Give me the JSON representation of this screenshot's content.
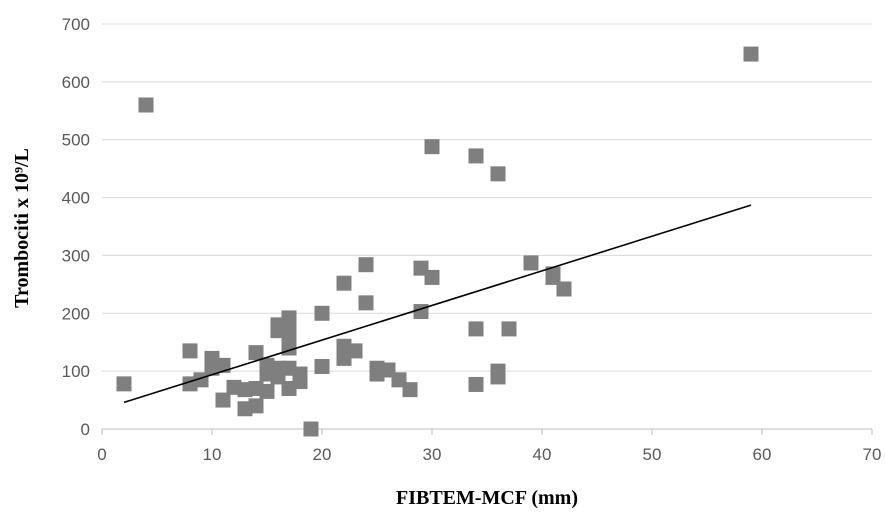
{
  "chart_data": {
    "type": "scatter",
    "title": "",
    "xlabel": "FIBTEM-MCF (mm)",
    "ylabel": "Trombociti x 10⁹/L",
    "xlim": [
      0,
      70
    ],
    "ylim": [
      0,
      700
    ],
    "x_ticks": [
      0,
      10,
      20,
      30,
      40,
      50,
      60,
      70
    ],
    "y_ticks": [
      0,
      100,
      200,
      300,
      400,
      500,
      600,
      700
    ],
    "grid": "horizontal",
    "legend": "none",
    "marker": "square",
    "colors": {
      "marker": "#7f7f7f",
      "trendline": "#000000",
      "grid": "#d9d9d9",
      "axis": "#bfbfbf"
    },
    "points": [
      {
        "x": 2,
        "y": 78
      },
      {
        "x": 4,
        "y": 560
      },
      {
        "x": 8,
        "y": 135
      },
      {
        "x": 8,
        "y": 78
      },
      {
        "x": 9,
        "y": 85
      },
      {
        "x": 10,
        "y": 122
      },
      {
        "x": 10,
        "y": 105
      },
      {
        "x": 11,
        "y": 110
      },
      {
        "x": 11,
        "y": 50
      },
      {
        "x": 12,
        "y": 72
      },
      {
        "x": 13,
        "y": 68
      },
      {
        "x": 13,
        "y": 35
      },
      {
        "x": 14,
        "y": 132
      },
      {
        "x": 14,
        "y": 70
      },
      {
        "x": 14,
        "y": 40
      },
      {
        "x": 15,
        "y": 110
      },
      {
        "x": 15,
        "y": 95
      },
      {
        "x": 15,
        "y": 65
      },
      {
        "x": 16,
        "y": 180
      },
      {
        "x": 16,
        "y": 170
      },
      {
        "x": 16,
        "y": 105
      },
      {
        "x": 16,
        "y": 90
      },
      {
        "x": 17,
        "y": 192
      },
      {
        "x": 17,
        "y": 175
      },
      {
        "x": 17,
        "y": 155
      },
      {
        "x": 17,
        "y": 140
      },
      {
        "x": 17,
        "y": 105
      },
      {
        "x": 17,
        "y": 70
      },
      {
        "x": 18,
        "y": 95
      },
      {
        "x": 18,
        "y": 82
      },
      {
        "x": 19,
        "y": 0
      },
      {
        "x": 20,
        "y": 200
      },
      {
        "x": 20,
        "y": 108
      },
      {
        "x": 22,
        "y": 252
      },
      {
        "x": 22,
        "y": 143
      },
      {
        "x": 22,
        "y": 122
      },
      {
        "x": 23,
        "y": 135
      },
      {
        "x": 24,
        "y": 284
      },
      {
        "x": 24,
        "y": 218
      },
      {
        "x": 25,
        "y": 105
      },
      {
        "x": 25,
        "y": 95
      },
      {
        "x": 26,
        "y": 102
      },
      {
        "x": 27,
        "y": 85
      },
      {
        "x": 28,
        "y": 68
      },
      {
        "x": 29,
        "y": 278
      },
      {
        "x": 29,
        "y": 203
      },
      {
        "x": 30,
        "y": 488
      },
      {
        "x": 30,
        "y": 262
      },
      {
        "x": 34,
        "y": 472
      },
      {
        "x": 34,
        "y": 173
      },
      {
        "x": 34,
        "y": 77
      },
      {
        "x": 36,
        "y": 441
      },
      {
        "x": 36,
        "y": 100
      },
      {
        "x": 36,
        "y": 90
      },
      {
        "x": 37,
        "y": 173
      },
      {
        "x": 39,
        "y": 287
      },
      {
        "x": 41,
        "y": 268
      },
      {
        "x": 41,
        "y": 262
      },
      {
        "x": 42,
        "y": 242
      },
      {
        "x": 59,
        "y": 648
      }
    ],
    "trendline": {
      "type": "linear",
      "x": [
        2,
        59
      ],
      "y": [
        46,
        387
      ]
    }
  }
}
